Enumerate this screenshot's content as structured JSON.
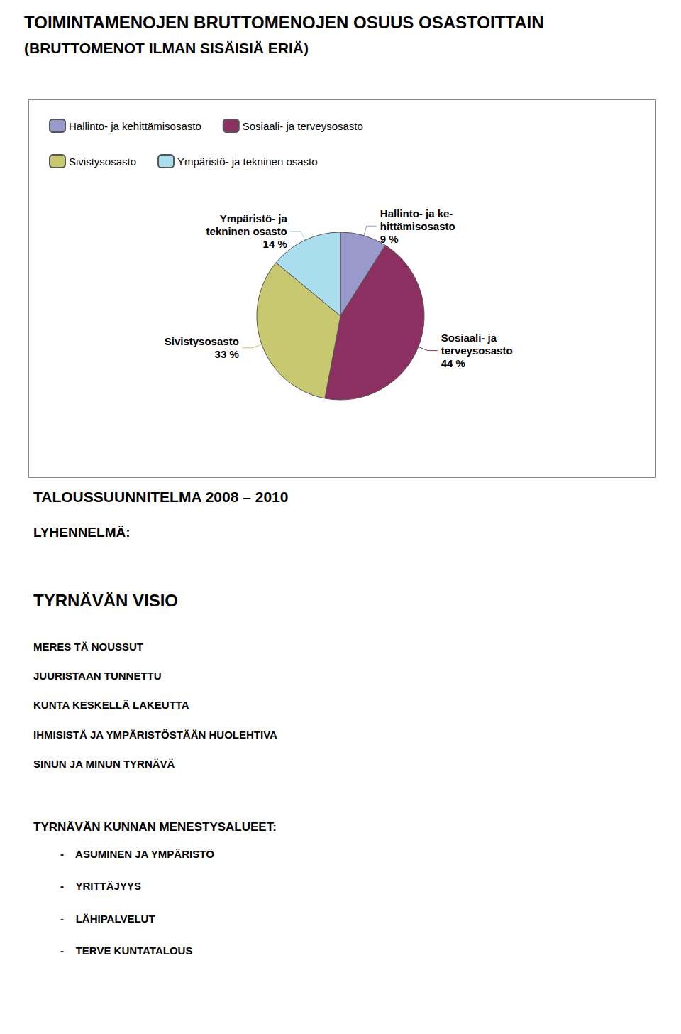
{
  "chart_data": {
    "type": "pie",
    "title": "TOIMINTAMENOJEN BRUTTOMENOJEN OSUUS OSASTOITTAIN",
    "subtitle": "(BRUTTOMENOT ILMAN SISÄISIÄ ERIÄ)",
    "categories": [
      "Hallinto- ja kehittämisosasto",
      "Sosiaali- ja terveysosasto",
      "Sivistysosasto",
      "Ympäristö- ja tekninen osasto"
    ],
    "values": [
      9,
      44,
      33,
      14
    ],
    "value_labels": [
      "Hallinto- ja ke-\nhittämisosasto\n9 %",
      "Sosiaali- ja\nterveysosasto\n44 %",
      "Sivistysosasto\n33 %",
      "Ympäristö- ja\ntekninen osasto\n14 %"
    ],
    "colors": [
      "#9999CC",
      "#8B3060",
      "#C8C870",
      "#AADDEE"
    ],
    "legend": "top",
    "data_labels": true,
    "annotations": [
      "TALOUSSUUNNITELMA 2008 – 2010",
      "LYHENNELMÄ:",
      "TYRNÄVÄN VISIO",
      "MERES TÄ NOUSSUT",
      "JUURISTAAN TUNNETTU",
      "KUNTA KESKELLÄ LAKEUTTA",
      "IHMISISTÄ JA YMPÄRISTÖSTÄÄN HUOLEHTIVA",
      "SINUN JA MINUN TYRNÄVÄ",
      "TYRNÄVÄN KUNNAN MENESTYSALUEET:",
      "-    ASUMINEN JA YMPÄRISTÖ",
      "-    YRITTÄJYYS",
      "-    LÄHIPALVELUT",
      "-    TERVE KUNTATALOUS"
    ]
  }
}
